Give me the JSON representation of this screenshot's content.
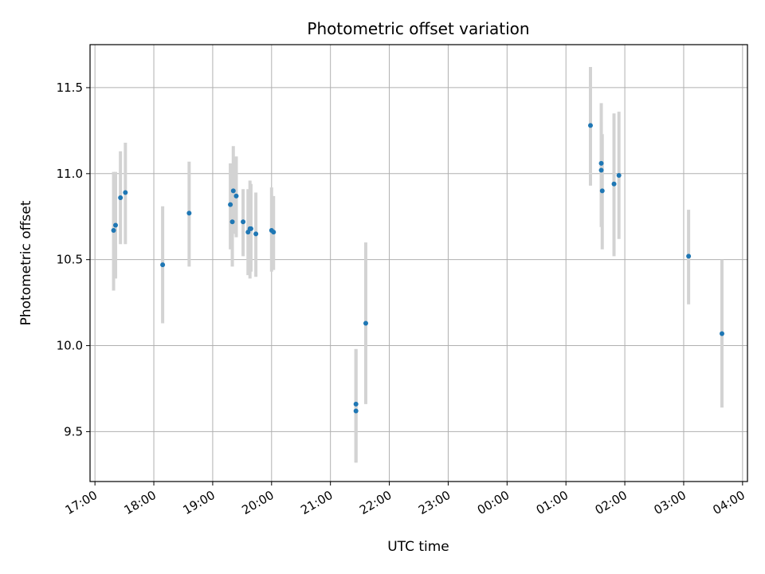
{
  "chart_data": {
    "type": "scatter",
    "title": "Photometric offset variation",
    "xlabel": "UTC time",
    "ylabel": "Photometric offset",
    "x_axis_kind": "time",
    "xlim": [
      "16:55",
      "04:05"
    ],
    "ylim": [
      9.21,
      11.75
    ],
    "grid": true,
    "x_ticks": [
      "17:00",
      "18:00",
      "19:00",
      "20:00",
      "21:00",
      "22:00",
      "23:00",
      "00:00",
      "01:00",
      "02:00",
      "03:00",
      "04:00"
    ],
    "y_ticks": [
      "9.5",
      "10.0",
      "10.5",
      "11.0",
      "11.5"
    ],
    "colors": {
      "point": "#1f77b4",
      "errorbar": "#d3d3d3",
      "grid": "#b0b0b0"
    },
    "series": [
      {
        "points": [
          {
            "x": "17:19",
            "y": 10.67,
            "lo": 10.32,
            "hi": 11.01
          },
          {
            "x": "17:21",
            "y": 10.7,
            "lo": 10.39,
            "hi": 11.01
          },
          {
            "x": "17:26",
            "y": 10.86,
            "lo": 10.59,
            "hi": 11.13
          },
          {
            "x": "17:31",
            "y": 10.89,
            "lo": 10.59,
            "hi": 11.18
          },
          {
            "x": "18:09",
            "y": 10.47,
            "lo": 10.13,
            "hi": 10.81
          },
          {
            "x": "18:36",
            "y": 10.77,
            "lo": 10.46,
            "hi": 11.07
          },
          {
            "x": "19:18",
            "y": 10.82,
            "lo": 10.56,
            "hi": 11.06
          },
          {
            "x": "19:20",
            "y": 10.72,
            "lo": 10.46,
            "hi": 10.97
          },
          {
            "x": "19:21",
            "y": 10.9,
            "lo": 10.65,
            "hi": 11.16
          },
          {
            "x": "19:24",
            "y": 10.87,
            "lo": 10.63,
            "hi": 11.1
          },
          {
            "x": "19:31",
            "y": 10.72,
            "lo": 10.52,
            "hi": 10.91
          },
          {
            "x": "19:36",
            "y": 10.66,
            "lo": 10.41,
            "hi": 10.91
          },
          {
            "x": "19:38",
            "y": 10.68,
            "lo": 10.39,
            "hi": 10.96
          },
          {
            "x": "19:39",
            "y": 10.68,
            "lo": 10.43,
            "hi": 10.94
          },
          {
            "x": "19:44",
            "y": 10.65,
            "lo": 10.4,
            "hi": 10.89
          },
          {
            "x": "20:00",
            "y": 10.67,
            "lo": 10.43,
            "hi": 10.92
          },
          {
            "x": "20:02",
            "y": 10.66,
            "lo": 10.44,
            "hi": 10.87
          },
          {
            "x": "21:26",
            "y": 9.66,
            "lo": 9.32,
            "hi": 9.98
          },
          {
            "x": "21:26",
            "y": 9.62,
            "lo": 9.32,
            "hi": 9.98
          },
          {
            "x": "21:36",
            "y": 10.13,
            "lo": 9.66,
            "hi": 10.6
          },
          {
            "x": "01:25",
            "y": 11.28,
            "lo": 10.93,
            "hi": 11.62
          },
          {
            "x": "01:36",
            "y": 11.06,
            "lo": 10.69,
            "hi": 11.41
          },
          {
            "x": "01:36",
            "y": 11.02,
            "lo": 10.73,
            "hi": 11.3
          },
          {
            "x": "01:37",
            "y": 10.9,
            "lo": 10.56,
            "hi": 11.23
          },
          {
            "x": "01:49",
            "y": 10.94,
            "lo": 10.52,
            "hi": 11.35
          },
          {
            "x": "01:54",
            "y": 10.99,
            "lo": 10.62,
            "hi": 11.36
          },
          {
            "x": "03:05",
            "y": 10.52,
            "lo": 10.24,
            "hi": 10.79
          },
          {
            "x": "03:39",
            "y": 10.07,
            "lo": 9.64,
            "hi": 10.5
          }
        ]
      }
    ]
  }
}
